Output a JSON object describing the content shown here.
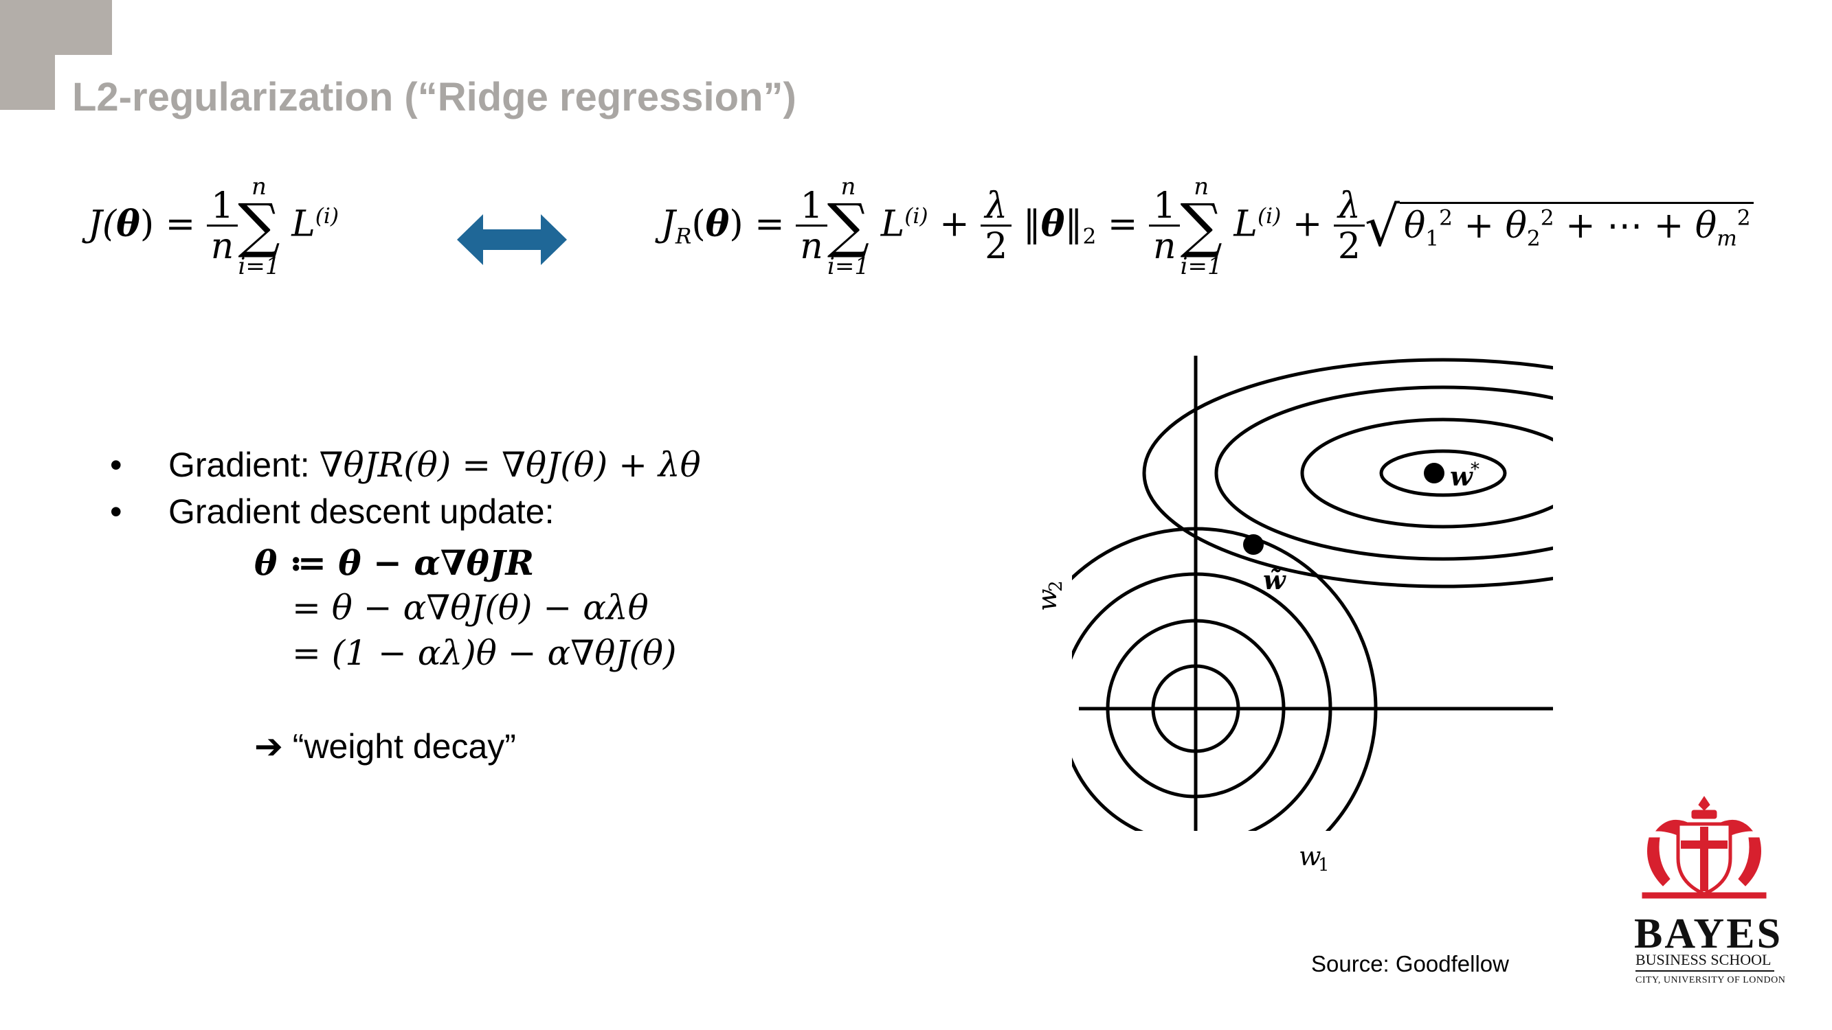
{
  "slide": {
    "title": "L2-regularization (“Ridge regression”)",
    "source": "Source: Goodfellow"
  },
  "equations": {
    "plain_lhs": "J(",
    "theta": "θ",
    "close_eq": ") =",
    "one": "1",
    "n": "n",
    "sum_top": "n",
    "sum_sym": "∑",
    "sum_bottom": "i=1",
    "loss": "L",
    "loss_sup": "(i)",
    "ridge_J": "J",
    "ridge_sub": "R",
    "plus": "+",
    "lambda": "λ",
    "two": "2",
    "norm_open": "‖",
    "norm_close": "‖",
    "norm_sub": "2",
    "equals": "=",
    "sqrt_sign": "√",
    "theta1": "θ",
    "sub1": "1",
    "sub2": "2",
    "subm": "m",
    "sq": "2",
    "dots": "⋯"
  },
  "bullets": {
    "gradient_label": "Gradient: ",
    "gradient_expr": "∇θJR(θ) = ∇θJ(θ) + λθ",
    "update_label": "Gradient descent update:",
    "line1": "θ ≔ θ − α∇θJR",
    "line2": "= θ − α∇θJ(θ) − αλθ",
    "line3": "= (1 − αλ)θ − α∇θJ(θ)",
    "bullet_char": "•",
    "decay_arrow": "➔",
    "decay_text": " “weight decay”"
  },
  "figure": {
    "w_star": "w",
    "w_star_sup": "*",
    "w_tilde": "w̃",
    "axis_x": "w",
    "axis_x_sub": "1",
    "axis_y": "w",
    "axis_y_sub": "2"
  },
  "logo": {
    "name": "BAYES",
    "sub": "BUSINESS SCHOOL",
    "sub2": "CITY, UNIVERSITY OF LONDON",
    "color": "#d7202e"
  },
  "colors": {
    "title": "#a9a6a3",
    "corner": "#b3aea9",
    "arrow": "#1f6797"
  },
  "icons": [
    "double-arrow-icon",
    "right-arrow-icon",
    "crest-icon"
  ]
}
